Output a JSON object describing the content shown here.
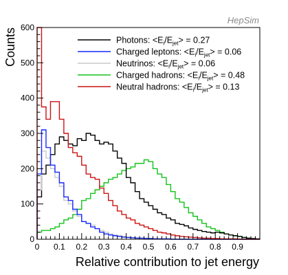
{
  "chart_data": {
    "type": "line",
    "watermark": "HepSim",
    "xlabel": "Relative contribution to jet energy",
    "ylabel": "Counts",
    "xlim": [
      0,
      1
    ],
    "ylim": [
      0,
      600
    ],
    "xticks": [
      "0",
      "0.1",
      "0.2",
      "0.3",
      "0.4",
      "0.5",
      "0.6",
      "0.7",
      "0.8",
      "0.9"
    ],
    "yticks": [
      "0",
      "100",
      "200",
      "300",
      "400",
      "500",
      "600"
    ],
    "legend_position": "top-right",
    "bin_width": 0.02,
    "series": [
      {
        "name": "Photons",
        "legend_prefix": "Photons: <E",
        "legend_mid": "/E",
        "legend_sub_i": "i",
        "legend_sub_jet": "jet",
        "legend_suffix": "> = 0.27",
        "color": "#000000",
        "values": [
          120,
          185,
          210,
          240,
          270,
          290,
          280,
          270,
          265,
          285,
          280,
          300,
          295,
          280,
          270,
          275,
          270,
          250,
          230,
          215,
          175,
          160,
          135,
          115,
          105,
          95,
          85,
          75,
          70,
          60,
          55,
          45,
          42,
          38,
          32,
          28,
          25,
          22,
          20,
          18,
          20,
          18,
          15,
          12,
          10,
          8,
          5,
          3,
          2,
          1
        ]
      },
      {
        "name": "Charged leptons",
        "legend_prefix": "Charged leptons: <E",
        "legend_mid": "/E",
        "legend_sub_i": "i",
        "legend_sub_jet": "jet",
        "legend_suffix": "> = 0.06",
        "color": "#1528ff",
        "values": [
          185,
          310,
          260,
          210,
          190,
          160,
          120,
          110,
          85,
          70,
          50,
          45,
          35,
          30,
          20,
          15,
          12,
          10,
          8,
          6,
          5,
          4,
          3,
          3,
          2,
          2,
          1,
          1,
          1,
          1,
          0,
          0,
          0,
          0,
          0,
          0,
          0,
          0,
          0,
          0,
          0,
          0,
          0,
          0,
          0,
          0,
          0,
          0,
          0,
          0
        ]
      },
      {
        "name": "Neutrinos",
        "legend_prefix": "Neutrinos: <E",
        "legend_mid": "/E",
        "legend_sub_i": "i",
        "legend_sub_jet": "jet",
        "legend_suffix": "> = 0.06",
        "color": "#c8c8c8",
        "values": [
          140,
          250,
          230,
          200,
          175,
          150,
          110,
          100,
          80,
          65,
          50,
          45,
          40,
          30,
          25,
          20,
          15,
          12,
          10,
          8,
          6,
          5,
          4,
          3,
          3,
          2,
          2,
          1,
          1,
          1,
          0,
          0,
          0,
          0,
          0,
          0,
          0,
          0,
          0,
          0,
          0,
          0,
          0,
          0,
          0,
          0,
          0,
          0,
          0,
          0
        ]
      },
      {
        "name": "Charged hadrons",
        "legend_prefix": "Charged hadrons: <E",
        "legend_mid": "/E",
        "legend_sub_i": "i",
        "legend_sub_jet": "jet",
        "legend_suffix": "> = 0.48",
        "color": "#12c21a",
        "values": [
          20,
          25,
          25,
          30,
          35,
          45,
          55,
          60,
          70,
          85,
          110,
          115,
          130,
          140,
          150,
          160,
          170,
          175,
          185,
          195,
          200,
          205,
          215,
          215,
          225,
          220,
          200,
          185,
          175,
          155,
          135,
          115,
          105,
          90,
          75,
          65,
          55,
          45,
          35,
          30,
          25,
          20,
          15,
          12,
          10,
          8,
          5,
          3,
          2,
          1
        ]
      },
      {
        "name": "Neutral hadrons",
        "legend_prefix": "Neutral hadrons: <E",
        "legend_mid": "/E",
        "legend_sub_i": "i",
        "legend_sub_jet": "jet",
        "legend_suffix": "> = 0.13",
        "color": "#cc1111",
        "values": [
          600,
          375,
          340,
          390,
          390,
          340,
          300,
          260,
          245,
          235,
          210,
          185,
          175,
          170,
          145,
          130,
          110,
          95,
          80,
          70,
          60,
          55,
          45,
          40,
          35,
          30,
          25,
          20,
          18,
          15,
          12,
          10,
          8,
          7,
          6,
          5,
          4,
          3,
          3,
          2,
          2,
          1,
          1,
          1,
          1,
          0,
          0,
          0,
          0,
          0
        ]
      }
    ]
  }
}
